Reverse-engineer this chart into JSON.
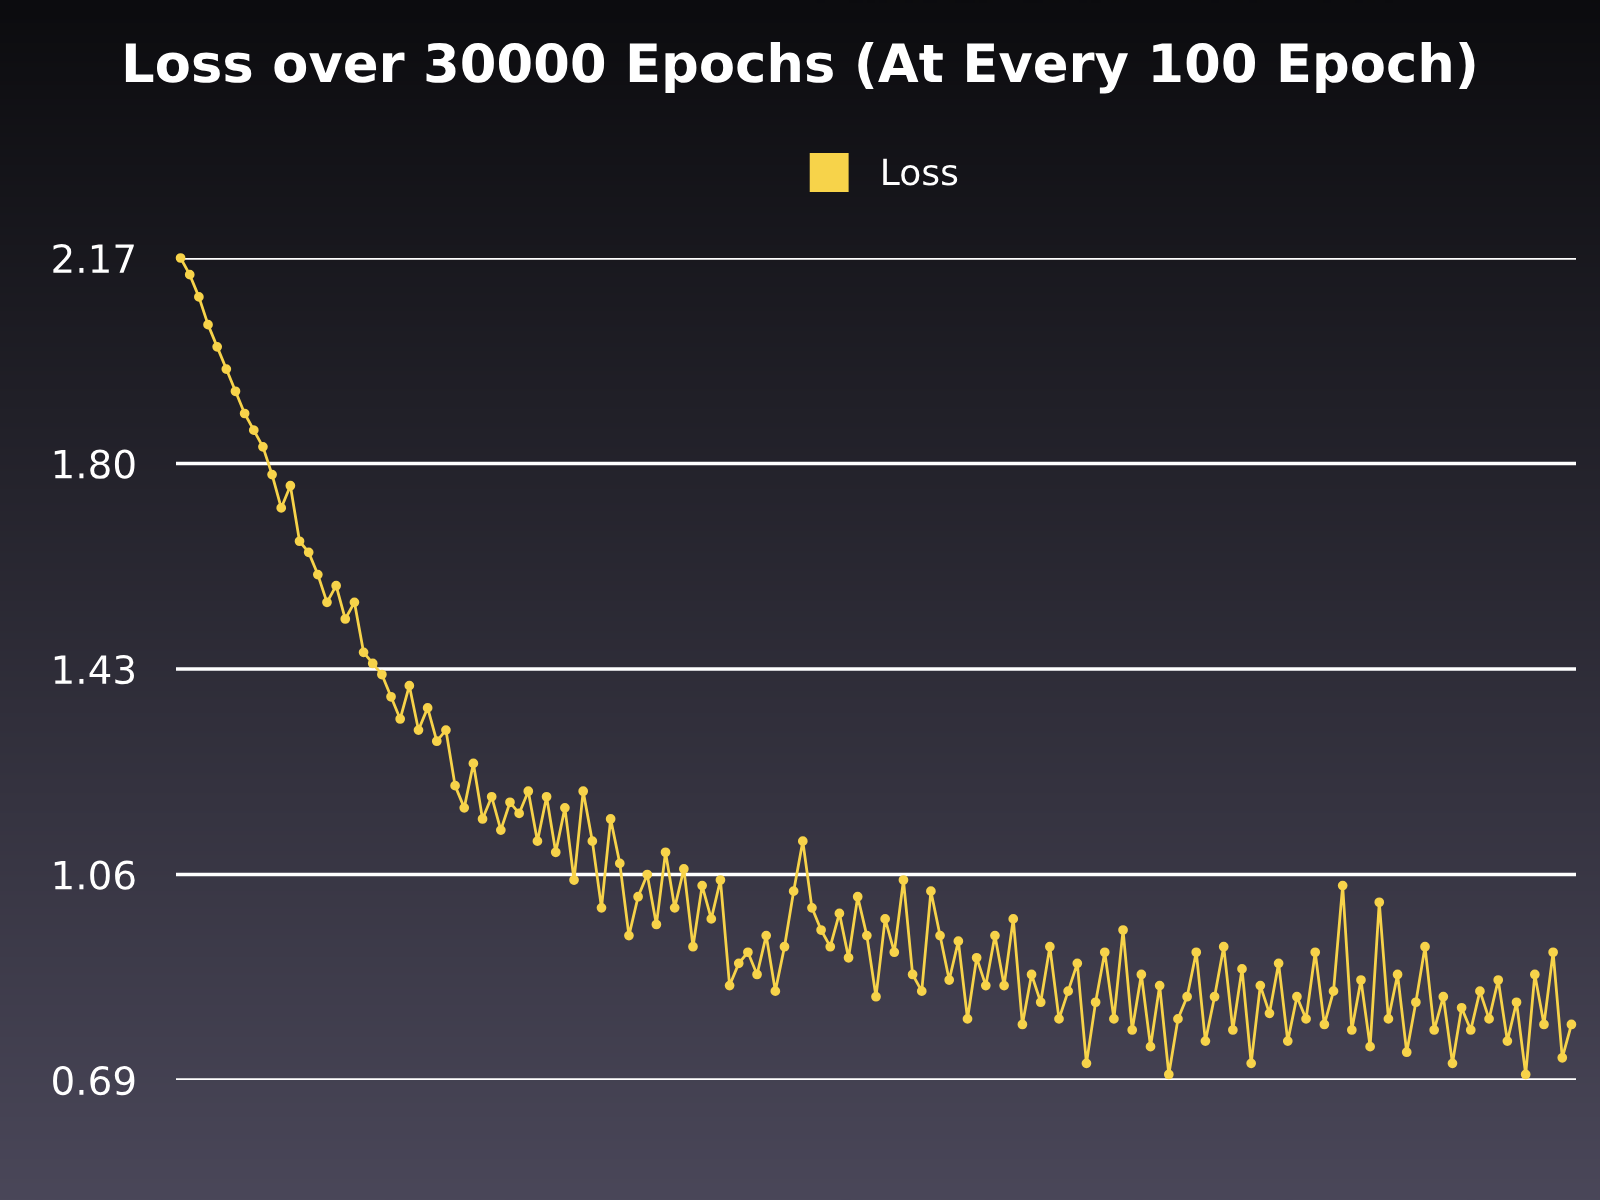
{
  "chart_data": {
    "type": "line",
    "title": "Loss over 30000 Epochs (At Every 100 Epoch)",
    "categories": [
      null,
      null,
      null,
      null,
      null,
      null,
      null,
      null,
      null,
      null,
      null,
      null,
      null,
      null,
      null,
      null,
      null,
      null,
      null,
      null,
      null,
      null,
      null,
      null,
      null,
      null,
      null,
      null,
      null,
      null,
      null,
      null,
      null,
      null,
      null,
      null,
      null,
      null,
      null,
      null,
      null,
      null,
      null,
      null,
      null,
      null,
      null,
      null,
      null,
      null,
      null,
      null,
      null,
      null,
      null,
      null,
      null,
      null,
      null,
      null,
      null,
      null,
      null,
      null,
      null,
      null,
      null,
      null,
      null,
      null,
      null,
      null,
      null,
      null,
      null,
      null,
      null,
      null,
      null,
      null,
      null,
      null,
      null,
      null,
      null,
      null,
      null,
      null,
      null,
      null,
      null,
      null,
      null,
      null,
      null,
      null,
      null,
      null,
      null,
      null,
      null,
      null,
      null,
      null,
      null,
      null,
      null,
      null,
      null,
      null,
      null,
      null,
      null,
      null,
      null,
      null,
      null,
      null,
      null,
      null,
      null,
      null,
      null,
      null,
      null,
      null,
      null,
      null,
      null,
      null,
      null,
      null,
      null,
      null,
      null,
      null,
      null,
      null,
      null,
      null,
      null,
      null,
      null,
      null,
      null,
      null,
      null,
      null,
      null,
      null,
      null,
      null,
      null
    ],
    "series": [
      {
        "name": "Loss",
        "color": "#f7d34a",
        "values": [
          2.17,
          2.14,
          2.1,
          2.05,
          2.01,
          1.97,
          1.93,
          1.89,
          1.86,
          1.83,
          1.78,
          1.72,
          1.76,
          1.66,
          1.64,
          1.6,
          1.55,
          1.58,
          1.52,
          1.55,
          1.46,
          1.44,
          1.42,
          1.38,
          1.34,
          1.4,
          1.32,
          1.36,
          1.3,
          1.32,
          1.22,
          1.18,
          1.26,
          1.16,
          1.2,
          1.14,
          1.19,
          1.17,
          1.21,
          1.12,
          1.2,
          1.1,
          1.18,
          1.05,
          1.21,
          1.12,
          1.0,
          1.16,
          1.08,
          0.95,
          1.02,
          1.06,
          0.97,
          1.1,
          1.0,
          1.07,
          0.93,
          1.04,
          0.98,
          1.05,
          0.86,
          0.9,
          0.92,
          0.88,
          0.95,
          0.85,
          0.93,
          1.03,
          1.12,
          1.0,
          0.96,
          0.93,
          0.99,
          0.91,
          1.02,
          0.95,
          0.84,
          0.98,
          0.92,
          1.05,
          0.88,
          0.85,
          1.03,
          0.95,
          0.87,
          0.94,
          0.8,
          0.91,
          0.86,
          0.95,
          0.86,
          0.98,
          0.79,
          0.88,
          0.83,
          0.93,
          0.8,
          0.85,
          0.9,
          0.72,
          0.83,
          0.92,
          0.8,
          0.96,
          0.78,
          0.88,
          0.75,
          0.86,
          0.7,
          0.8,
          0.84,
          0.92,
          0.76,
          0.84,
          0.93,
          0.78,
          0.89,
          0.72,
          0.86,
          0.81,
          0.9,
          0.76,
          0.84,
          0.8,
          0.92,
          0.79,
          0.85,
          1.04,
          0.78,
          0.87,
          0.75,
          1.01,
          0.8,
          0.88,
          0.74,
          0.83,
          0.93,
          0.78,
          0.84,
          0.72,
          0.82,
          0.78,
          0.85,
          0.8,
          0.87,
          0.76,
          0.83,
          0.7,
          0.88,
          0.79,
          0.92,
          0.73,
          0.79
        ]
      }
    ],
    "ylim": [
      0.69,
      2.17
    ],
    "yticks": [
      0.69,
      1.06,
      1.43,
      {
        "value": 1.8,
        "label": "1.80"
      },
      2.17
    ],
    "grid": "y",
    "legend": "top",
    "marker": "circle",
    "line_style": "solid",
    "tick_labels": "y"
  }
}
